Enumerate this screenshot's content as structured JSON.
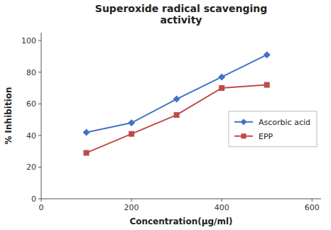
{
  "chart_data": {
    "type": "line",
    "title": "Superoxide radical scavenging\nactivity",
    "x_label": "Concentration(µg/ml)",
    "y_label": "% Inhibition",
    "x": [
      100,
      200,
      300,
      400,
      500
    ],
    "series": [
      {
        "name": "Ascorbic acid",
        "color": "#4472C4",
        "marker": "diamond",
        "values": [
          42,
          48,
          63,
          77,
          91
        ]
      },
      {
        "name": "EPP",
        "color": "#BE4B48",
        "marker": "square",
        "values": [
          29,
          41,
          53,
          70,
          72
        ]
      }
    ],
    "xlim": [
      0,
      620
    ],
    "ylim": [
      0,
      105
    ],
    "xticks": [
      0,
      200,
      400,
      600
    ],
    "yticks": [
      0,
      20,
      40,
      60,
      80,
      100
    ],
    "grid": false,
    "legend": "right"
  }
}
